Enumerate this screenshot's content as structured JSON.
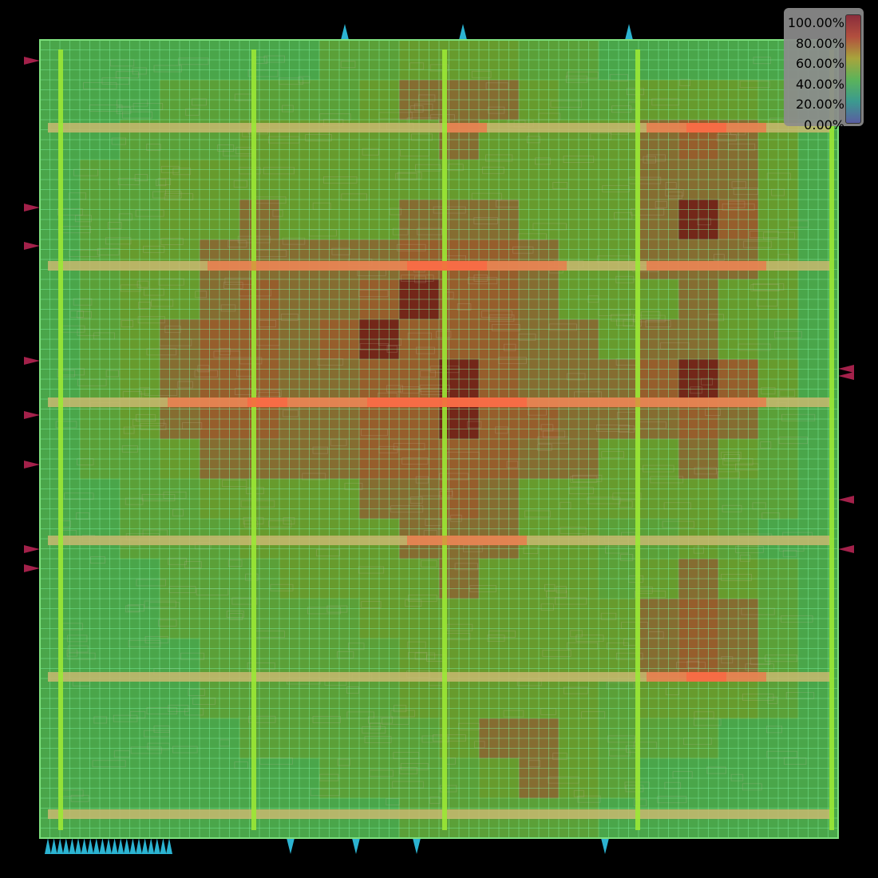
{
  "heatmap": {
    "title": "",
    "colorbar": {
      "labels": [
        "100.00%",
        "80.00%",
        "60.00%",
        "40.00%",
        "20.00%",
        "0.00%"
      ],
      "gradient": [
        "#8a2d3c",
        "#b24f3e",
        "#a8a43c",
        "#5bb35a",
        "#3b9a8f",
        "#5a5da0"
      ]
    },
    "colors": {
      "background": "#000000",
      "die_fill": "#4aa64a",
      "die_border": "#7de07d",
      "grid_line": "#7ef0a0",
      "power_stripe_vertical": "#9be835",
      "power_stripe_horizontal": "#c8b870",
      "pin_left_right": "#a3214a",
      "pin_top_bottom": "#2bb3d1",
      "hotspot_low": "#6a9a2a",
      "hotspot_mid": "#9a5a2a",
      "hotspot_high": "#7a1010",
      "stripe_crossing_hot": "#ff6040"
    }
  },
  "chart_data": {
    "type": "heatmap",
    "title": "",
    "metric_range_percent": [
      0,
      100
    ],
    "colorbar_ticks": [
      "0.00%",
      "20.00%",
      "40.00%",
      "60.00%",
      "80.00%",
      "100.00%"
    ],
    "grid_size": [
      20,
      20
    ],
    "utilization_percent": [
      [
        45,
        45,
        45,
        45,
        48,
        50,
        52,
        55,
        62,
        72,
        78,
        72,
        62,
        55,
        52,
        50,
        48,
        45,
        45,
        45
      ],
      [
        45,
        48,
        52,
        55,
        58,
        60,
        62,
        65,
        72,
        80,
        86,
        80,
        72,
        65,
        62,
        72,
        78,
        72,
        62,
        48
      ],
      [
        45,
        52,
        58,
        62,
        66,
        68,
        68,
        70,
        74,
        78,
        80,
        78,
        74,
        72,
        76,
        84,
        90,
        84,
        70,
        52
      ],
      [
        45,
        55,
        62,
        68,
        74,
        76,
        72,
        72,
        74,
        76,
        78,
        76,
        74,
        72,
        76,
        82,
        86,
        82,
        70,
        52
      ],
      [
        48,
        58,
        66,
        72,
        78,
        80,
        76,
        76,
        78,
        80,
        82,
        80,
        78,
        74,
        76,
        84,
        96,
        88,
        72,
        54
      ],
      [
        50,
        60,
        68,
        76,
        82,
        84,
        80,
        80,
        86,
        90,
        92,
        88,
        82,
        76,
        74,
        80,
        86,
        82,
        70,
        54
      ],
      [
        50,
        62,
        70,
        78,
        86,
        88,
        84,
        84,
        90,
        94,
        92,
        90,
        84,
        78,
        74,
        76,
        80,
        76,
        68,
        52
      ],
      [
        48,
        60,
        70,
        80,
        88,
        90,
        86,
        88,
        94,
        92,
        90,
        88,
        84,
        80,
        78,
        80,
        82,
        76,
        66,
        52
      ],
      [
        48,
        62,
        74,
        84,
        92,
        90,
        84,
        86,
        90,
        92,
        94,
        90,
        86,
        84,
        86,
        92,
        96,
        88,
        70,
        52
      ],
      [
        48,
        60,
        72,
        80,
        88,
        90,
        86,
        86,
        90,
        92,
        96,
        92,
        88,
        84,
        82,
        86,
        88,
        80,
        66,
        50
      ],
      [
        46,
        56,
        66,
        74,
        80,
        84,
        82,
        84,
        88,
        90,
        92,
        88,
        84,
        80,
        76,
        78,
        80,
        74,
        62,
        48
      ],
      [
        45,
        52,
        60,
        66,
        72,
        76,
        76,
        78,
        82,
        86,
        88,
        84,
        78,
        72,
        68,
        70,
        72,
        66,
        56,
        46
      ],
      [
        45,
        50,
        56,
        62,
        66,
        70,
        72,
        74,
        78,
        82,
        84,
        80,
        74,
        68,
        64,
        66,
        68,
        62,
        54,
        45
      ],
      [
        45,
        48,
        54,
        58,
        62,
        66,
        68,
        70,
        74,
        78,
        80,
        78,
        72,
        68,
        66,
        74,
        82,
        74,
        60,
        46
      ],
      [
        45,
        48,
        52,
        56,
        60,
        62,
        64,
        66,
        70,
        74,
        78,
        76,
        72,
        70,
        74,
        86,
        92,
        86,
        66,
        48
      ],
      [
        45,
        46,
        50,
        54,
        58,
        60,
        62,
        64,
        66,
        70,
        74,
        74,
        70,
        68,
        72,
        84,
        90,
        84,
        64,
        46
      ],
      [
        45,
        45,
        48,
        52,
        56,
        58,
        60,
        62,
        64,
        68,
        72,
        76,
        74,
        68,
        66,
        70,
        74,
        70,
        56,
        45
      ],
      [
        45,
        45,
        46,
        50,
        54,
        56,
        58,
        60,
        62,
        66,
        72,
        80,
        82,
        72,
        62,
        58,
        56,
        52,
        48,
        45
      ],
      [
        45,
        45,
        45,
        48,
        50,
        52,
        54,
        56,
        58,
        60,
        66,
        76,
        80,
        70,
        58,
        52,
        50,
        48,
        45,
        45
      ],
      [
        45,
        45,
        45,
        45,
        46,
        48,
        50,
        52,
        54,
        56,
        58,
        62,
        64,
        60,
        54,
        50,
        48,
        45,
        45,
        45
      ]
    ]
  },
  "pins": {
    "left_count": 9,
    "right_count": 5,
    "top_count": 3,
    "bottom_single_count": 4,
    "bottom_cluster_count": 21
  }
}
